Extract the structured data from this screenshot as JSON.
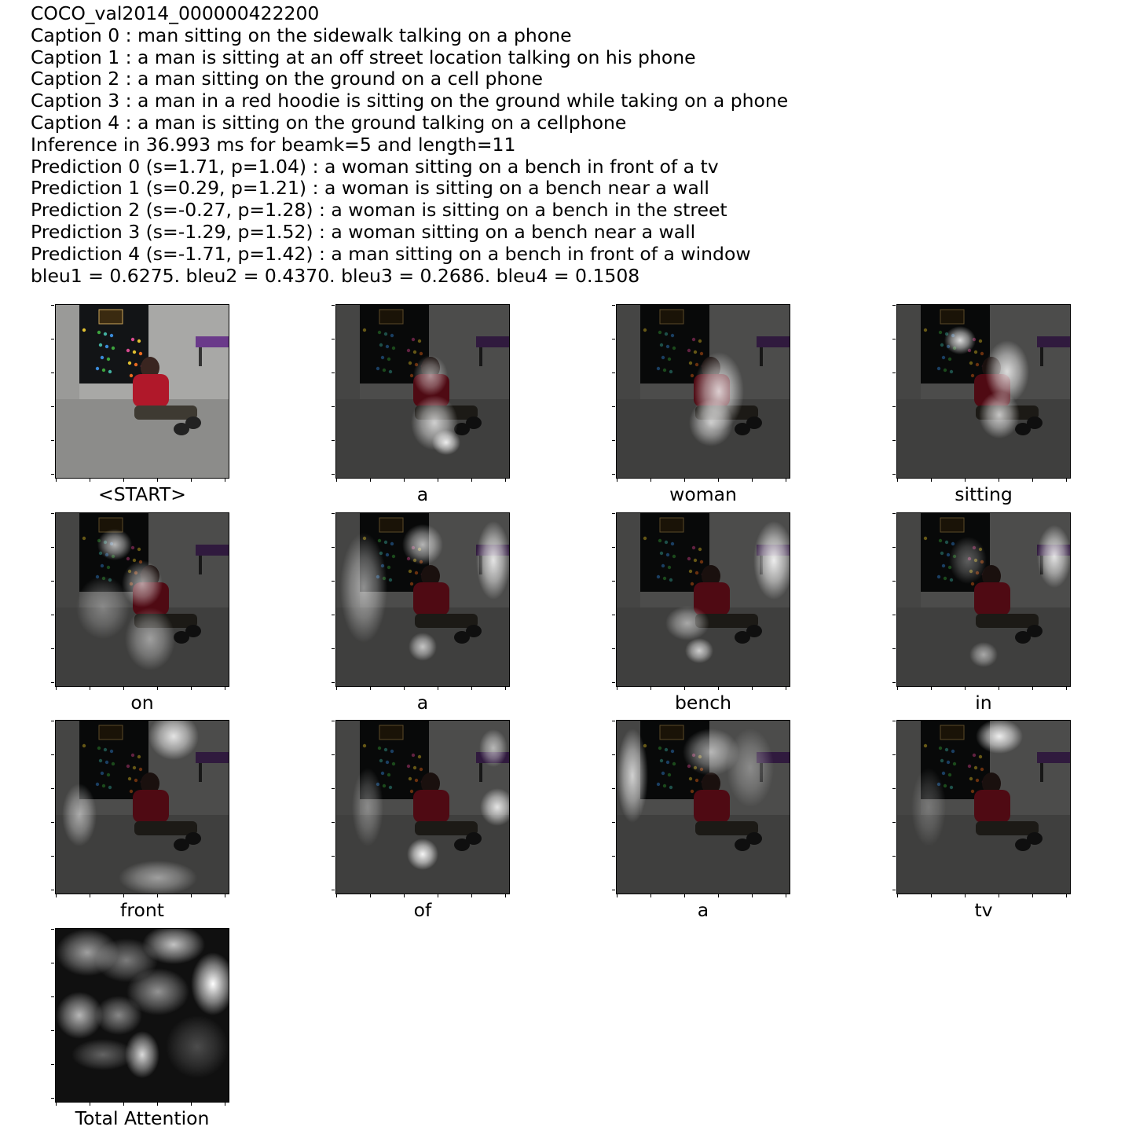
{
  "header": {
    "image_id": "COCO_val2014_000000422200",
    "captions": [
      "Caption 0 : man sitting on the sidewalk talking on a phone",
      "Caption 1 : a man is sitting at an off street location talking on his phone",
      "Caption 2 : a man sitting on the ground on a cell phone",
      "Caption 3 : a man in a red hoodie is sitting on the ground while taking on a phone",
      "Caption 4 : a man is sitting on the ground talking on a cellphone"
    ],
    "inference": "Inference in 36.993 ms for beamk=5 and length=11",
    "predictions": [
      "Prediction 0 (s=1.71, p=1.04) : a woman sitting on a bench in front of a tv",
      "Prediction 1 (s=0.29, p=1.21) : a woman is sitting on a bench near a wall",
      "Prediction 2 (s=-0.27, p=1.28) : a woman is sitting on a bench in the street",
      "Prediction 3 (s=-1.29, p=1.52) : a woman sitting on a bench near a wall",
      "Prediction 4 (s=-1.71, p=1.42) : a man sitting on a bench in front of a window"
    ],
    "bleu": "bleu1 = 0.6275. bleu2 = 0.4370. bleu3 = 0.2686. bleu4 = 0.1508"
  },
  "panels": [
    {
      "label": "<START>",
      "kind": "original"
    },
    {
      "label": "a",
      "kind": "attention"
    },
    {
      "label": "woman",
      "kind": "attention"
    },
    {
      "label": "sitting",
      "kind": "attention"
    },
    {
      "label": "on",
      "kind": "attention"
    },
    {
      "label": "a",
      "kind": "attention"
    },
    {
      "label": "bench",
      "kind": "attention"
    },
    {
      "label": "in",
      "kind": "attention"
    },
    {
      "label": "front",
      "kind": "attention"
    },
    {
      "label": "of",
      "kind": "attention"
    },
    {
      "label": "a",
      "kind": "attention"
    },
    {
      "label": "tv",
      "kind": "attention"
    },
    {
      "label": "Total Attention",
      "kind": "total"
    }
  ],
  "colors": {
    "wall": "#2a2a2a",
    "board": "#121416",
    "ground": "#5a5a58",
    "hoodie": "#b0182a",
    "bench": "#6a3a8a",
    "glow": "#ffffff"
  }
}
